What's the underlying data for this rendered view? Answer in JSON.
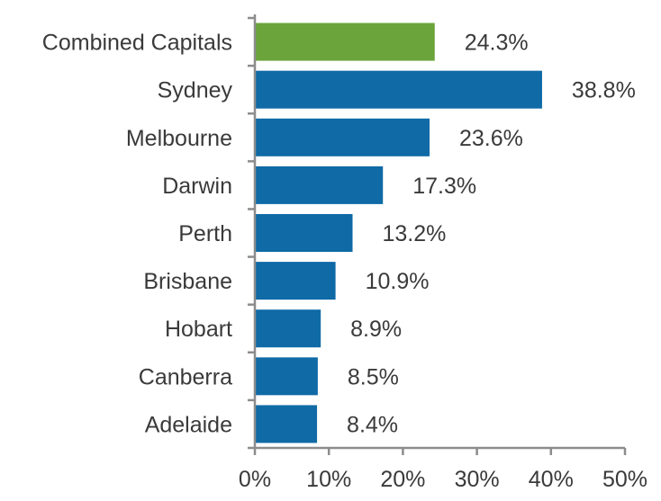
{
  "chart_data": {
    "type": "bar",
    "orientation": "horizontal",
    "categories": [
      "Combined Capitals",
      "Sydney",
      "Melbourne",
      "Darwin",
      "Perth",
      "Brisbane",
      "Hobart",
      "Canberra",
      "Adelaide"
    ],
    "values": [
      24.3,
      38.8,
      23.6,
      17.3,
      13.2,
      10.9,
      8.9,
      8.5,
      8.4
    ],
    "value_labels": [
      "24.3%",
      "38.8%",
      "23.6%",
      "17.3%",
      "13.2%",
      "10.9%",
      "8.9%",
      "8.5%",
      "8.4%"
    ],
    "bar_colors": [
      "#6aa43a",
      "#0f6aa6",
      "#0f6aa6",
      "#0f6aa6",
      "#0f6aa6",
      "#0f6aa6",
      "#0f6aa6",
      "#0f6aa6",
      "#0f6aa6"
    ],
    "xlim": [
      0,
      50
    ],
    "xticks": [
      0,
      10,
      20,
      30,
      40,
      50
    ],
    "xtick_labels": [
      "0%",
      "10%",
      "20%",
      "30%",
      "40%",
      "50%"
    ],
    "title": "",
    "xlabel": "",
    "ylabel": "",
    "grid": false,
    "legend": "none"
  }
}
